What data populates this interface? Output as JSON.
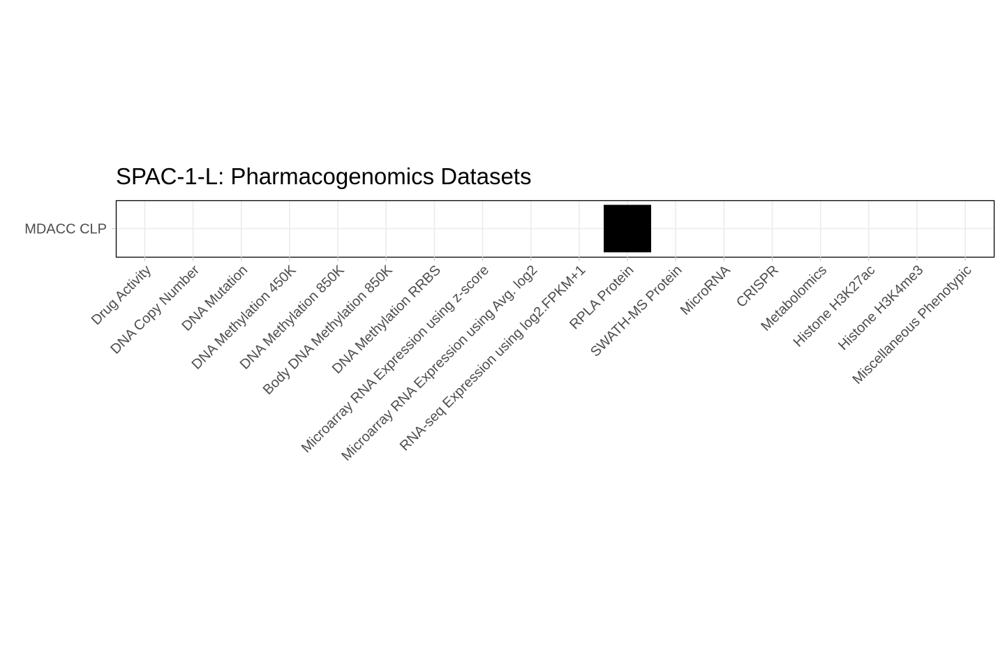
{
  "chart_data": {
    "type": "heatmap",
    "title": "SPAC-1-L: Pharmacogenomics Datasets",
    "xlabel": "",
    "ylabel": "",
    "grid": true,
    "legend": "none",
    "fill_color": "#000000",
    "x_categories": [
      "Drug Activity",
      "DNA Copy Number",
      "DNA Mutation",
      "DNA Methylation 450K",
      "DNA Methylation 850K",
      "Body DNA Methylation 850K",
      "DNA Methylation RRBS",
      "Microarray RNA Expression using z-score",
      "Microarray RNA Expression using Avg. log2",
      "RNA-seq Expression using log2.FPKM+1",
      "RPLA Protein",
      "SWATH-MS Protein",
      "MicroRNA",
      "CRISPR",
      "Metabolomics",
      "Histone H3K27ac",
      "Histone H3K4me3",
      "Miscellaneous Phenotypic"
    ],
    "y_categories": [
      "MDACC CLP"
    ],
    "cells": [
      {
        "x": "RPLA Protein",
        "y": "MDACC CLP",
        "value": 1
      }
    ]
  }
}
